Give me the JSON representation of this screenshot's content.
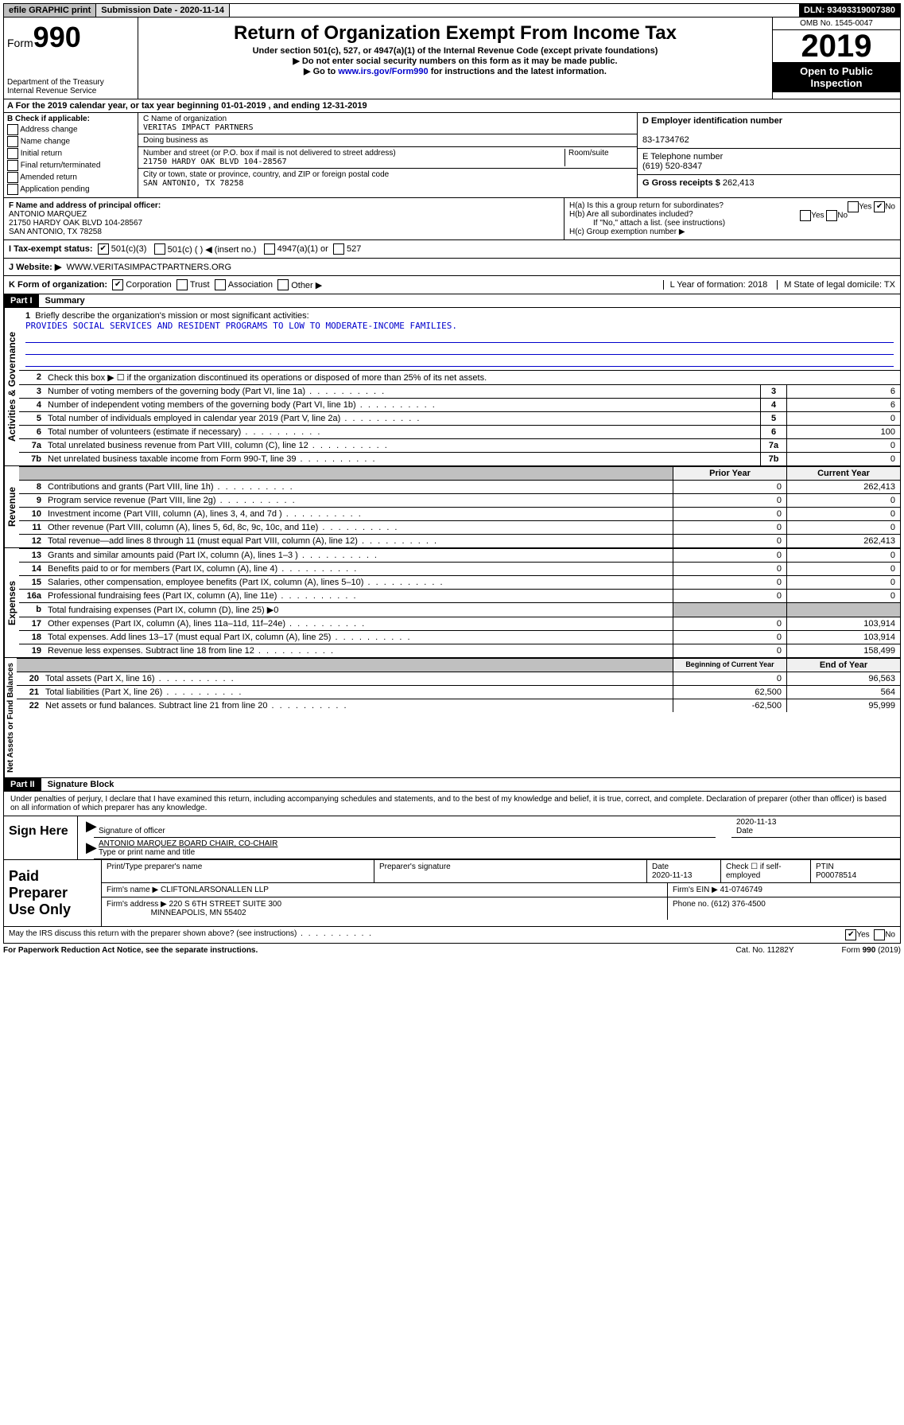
{
  "topbar": {
    "efile": "efile GRAPHIC print",
    "sub_label": "Submission Date - 2020-11-14",
    "dln": "DLN: 93493319007380"
  },
  "header": {
    "form_label": "Form",
    "form_num": "990",
    "dept": "Department of the Treasury\nInternal Revenue Service",
    "title": "Return of Organization Exempt From Income Tax",
    "subtitle": "Under section 501(c), 527, or 4947(a)(1) of the Internal Revenue Code (except private foundations)",
    "note1": "▶ Do not enter social security numbers on this form as it may be made public.",
    "note2_pre": "▶ Go to ",
    "note2_link": "www.irs.gov/Form990",
    "note2_post": " for instructions and the latest information.",
    "omb": "OMB No. 1545-0047",
    "year": "2019",
    "open": "Open to Public Inspection"
  },
  "ty_line": "For the 2019 calendar year, or tax year beginning 01-01-2019   , and ending 12-31-2019",
  "boxB": {
    "label": "B Check if applicable:",
    "opts": [
      "Address change",
      "Name change",
      "Initial return",
      "Final return/terminated",
      "Amended return",
      "Application pending"
    ]
  },
  "boxC": {
    "name_label": "C Name of organization",
    "name": "VERITAS IMPACT PARTNERS",
    "dba_label": "Doing business as",
    "addr_label": "Number and street (or P.O. box if mail is not delivered to street address)",
    "room_label": "Room/suite",
    "addr": "21750 HARDY OAK BLVD 104-28567",
    "city_label": "City or town, state or province, country, and ZIP or foreign postal code",
    "city": "SAN ANTONIO, TX  78258"
  },
  "boxD": {
    "label": "D Employer identification number",
    "val": "83-1734762"
  },
  "boxE": {
    "label": "E Telephone number",
    "val": "(619) 520-8347"
  },
  "boxG": {
    "label": "G Gross receipts $",
    "val": "262,413"
  },
  "boxF": {
    "label": "F  Name and address of principal officer:",
    "name": "ANTONIO MARQUEZ",
    "addr1": "21750 HARDY OAK BLVD 104-28567",
    "addr2": "SAN ANTONIO, TX  78258"
  },
  "boxH": {
    "a": "H(a)  Is this a group return for subordinates?",
    "b": "H(b)  Are all subordinates included?",
    "b_note": "If \"No,\" attach a list. (see instructions)",
    "c": "H(c)  Group exemption number ▶"
  },
  "rowI": {
    "label": "I   Tax-exempt status:",
    "o1": "501(c)(3)",
    "o2": "501(c) (   ) ◀ (insert no.)",
    "o3": "4947(a)(1) or",
    "o4": "527"
  },
  "rowJ": {
    "label": "J   Website: ▶",
    "val": "WWW.VERITASIMPACTPARTNERS.ORG"
  },
  "rowK": {
    "label": "K Form of organization:",
    "opts": [
      "Corporation",
      "Trust",
      "Association",
      "Other ▶"
    ],
    "L": "L Year of formation: 2018",
    "M": "M State of legal domicile: TX"
  },
  "part1": {
    "hdr": "Part I",
    "title": "Summary",
    "l1": "Briefly describe the organization's mission or most significant activities:",
    "mission": "PROVIDES SOCIAL SERVICES AND RESIDENT PROGRAMS TO LOW TO MODERATE-INCOME FAMILIES.",
    "l2": "Check this box ▶ ☐  if the organization discontinued its operations or disposed of more than 25% of its net assets.",
    "rows_gov": [
      {
        "n": "3",
        "d": "Number of voting members of the governing body (Part VI, line 1a)",
        "nc": "3",
        "v": "6"
      },
      {
        "n": "4",
        "d": "Number of independent voting members of the governing body (Part VI, line 1b)",
        "nc": "4",
        "v": "6"
      },
      {
        "n": "5",
        "d": "Total number of individuals employed in calendar year 2019 (Part V, line 2a)",
        "nc": "5",
        "v": "0"
      },
      {
        "n": "6",
        "d": "Total number of volunteers (estimate if necessary)",
        "nc": "6",
        "v": "100"
      },
      {
        "n": "7a",
        "d": "Total unrelated business revenue from Part VIII, column (C), line 12",
        "nc": "7a",
        "v": "0"
      },
      {
        "n": "7b",
        "d": "Net unrelated business taxable income from Form 990-T, line 39",
        "nc": "7b",
        "v": "0"
      }
    ],
    "col_hdr": {
      "c1": "Prior Year",
      "c2": "Current Year"
    },
    "rows_rev": [
      {
        "n": "8",
        "d": "Contributions and grants (Part VIII, line 1h)",
        "c1": "0",
        "c2": "262,413"
      },
      {
        "n": "9",
        "d": "Program service revenue (Part VIII, line 2g)",
        "c1": "0",
        "c2": "0"
      },
      {
        "n": "10",
        "d": "Investment income (Part VIII, column (A), lines 3, 4, and 7d )",
        "c1": "0",
        "c2": "0"
      },
      {
        "n": "11",
        "d": "Other revenue (Part VIII, column (A), lines 5, 6d, 8c, 9c, 10c, and 11e)",
        "c1": "0",
        "c2": "0"
      },
      {
        "n": "12",
        "d": "Total revenue—add lines 8 through 11 (must equal Part VIII, column (A), line 12)",
        "c1": "0",
        "c2": "262,413"
      }
    ],
    "rows_exp": [
      {
        "n": "13",
        "d": "Grants and similar amounts paid (Part IX, column (A), lines 1–3 )",
        "c1": "0",
        "c2": "0"
      },
      {
        "n": "14",
        "d": "Benefits paid to or for members (Part IX, column (A), line 4)",
        "c1": "0",
        "c2": "0"
      },
      {
        "n": "15",
        "d": "Salaries, other compensation, employee benefits (Part IX, column (A), lines 5–10)",
        "c1": "0",
        "c2": "0"
      },
      {
        "n": "16a",
        "d": "Professional fundraising fees (Part IX, column (A), line 11e)",
        "c1": "0",
        "c2": "0"
      },
      {
        "n": "b",
        "d": "Total fundraising expenses (Part IX, column (D), line 25) ▶0",
        "shade": true
      },
      {
        "n": "17",
        "d": "Other expenses (Part IX, column (A), lines 11a–11d, 11f–24e)",
        "c1": "0",
        "c2": "103,914"
      },
      {
        "n": "18",
        "d": "Total expenses. Add lines 13–17 (must equal Part IX, column (A), line 25)",
        "c1": "0",
        "c2": "103,914"
      },
      {
        "n": "19",
        "d": "Revenue less expenses. Subtract line 18 from line 12",
        "c1": "0",
        "c2": "158,499"
      }
    ],
    "col_hdr2": {
      "c1": "Beginning of Current Year",
      "c2": "End of Year"
    },
    "rows_net": [
      {
        "n": "20",
        "d": "Total assets (Part X, line 16)",
        "c1": "0",
        "c2": "96,563"
      },
      {
        "n": "21",
        "d": "Total liabilities (Part X, line 26)",
        "c1": "62,500",
        "c2": "564"
      },
      {
        "n": "22",
        "d": "Net assets or fund balances. Subtract line 21 from line 20",
        "c1": "-62,500",
        "c2": "95,999"
      }
    ],
    "tabs": {
      "gov": "Activities & Governance",
      "rev": "Revenue",
      "exp": "Expenses",
      "net": "Net Assets or Fund Balances"
    }
  },
  "part2": {
    "hdr": "Part II",
    "title": "Signature Block",
    "decl": "Under penalties of perjury, I declare that I have examined this return, including accompanying schedules and statements, and to the best of my knowledge and belief, it is true, correct, and complete. Declaration of preparer (other than officer) is based on all information of which preparer has any knowledge.",
    "sign_here": "Sign Here",
    "sig_officer": "Signature of officer",
    "date_label": "Date",
    "sig_date": "2020-11-13",
    "name_title": "ANTONIO MARQUEZ  BOARD CHAIR, CO-CHAIR",
    "type_label": "Type or print name and title"
  },
  "paid": {
    "label": "Paid Preparer Use Only",
    "h1": "Print/Type preparer's name",
    "h2": "Preparer's signature",
    "h3": "Date",
    "date": "2020-11-13",
    "h4": "Check ☐ if self-employed",
    "h5": "PTIN",
    "ptin": "P00078514",
    "firm_label": "Firm's name     ▶",
    "firm": "CLIFTONLARSONALLEN LLP",
    "ein_label": "Firm's EIN ▶",
    "ein": "41-0746749",
    "addr_label": "Firm's address ▶",
    "addr": "220 S 6TH STREET SUITE 300",
    "addr2": "MINNEAPOLIS, MN  55402",
    "phone_label": "Phone no.",
    "phone": "(612) 376-4500"
  },
  "discuss": "May the IRS discuss this return with the preparer shown above? (see instructions)",
  "footer": {
    "pra": "For Paperwork Reduction Act Notice, see the separate instructions.",
    "cat": "Cat. No. 11282Y",
    "form": "Form 990 (2019)"
  },
  "yes": "Yes",
  "no": "No"
}
